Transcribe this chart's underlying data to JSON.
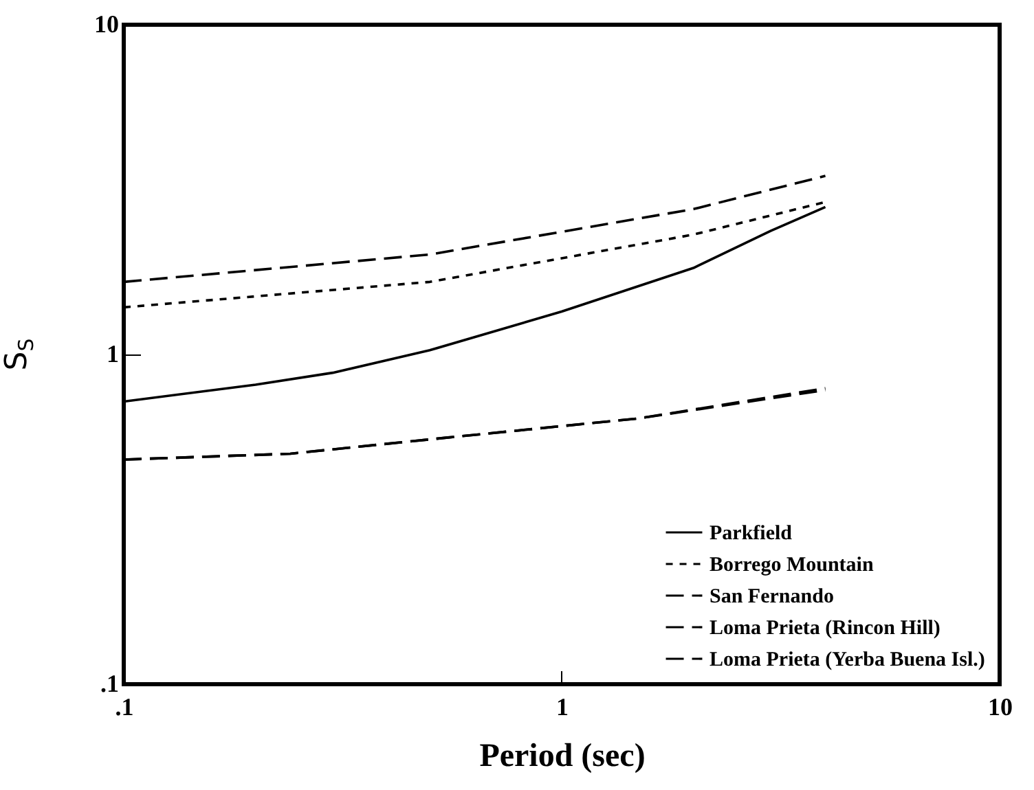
{
  "chart_data": {
    "type": "line",
    "xlabel": "Period (sec)",
    "ylabel": "S$_{S}$",
    "log": "xy",
    "grid": false,
    "legend": "bottom right",
    "xlim": [
      0.1,
      10
    ],
    "xticks": [
      {
        "value": 0.1,
        "label": ".1"
      },
      1,
      10
    ],
    "ylim": [
      0.1,
      10
    ],
    "yticks": [
      {
        "value": 0.1,
        "label": ".1"
      },
      1,
      10
    ],
    "series": [
      {
        "name": "Parkfield",
        "color": "#000000",
        "line_style": "solid",
        "x": [
          0.1,
          0.2,
          0.3,
          0.5,
          1,
          2,
          3,
          4
        ],
        "values": [
          0.72,
          0.81,
          0.88,
          1.03,
          1.35,
          1.83,
          2.37,
          2.8
        ]
      },
      {
        "name": "Borrego Mountain",
        "color": "#000000",
        "line_style": "dotted",
        "x": [
          0.1,
          0.5,
          2,
          4
        ],
        "values": [
          1.39,
          1.66,
          2.31,
          2.9
        ]
      },
      {
        "name": "San Fernando",
        "color": "#000000",
        "line_style": "dashed",
        "x": [
          0.1,
          0.5,
          2,
          4
        ],
        "values": [
          1.66,
          2.01,
          2.76,
          3.48
        ]
      },
      {
        "name": "Loma Prieta (Rincon Hill)",
        "color": "#000000",
        "line_style": "dashed",
        "x": [
          0.1,
          0.24,
          0.55,
          1.5,
          4
        ],
        "values": [
          0.48,
          0.5,
          0.56,
          0.64,
          0.78
        ]
      },
      {
        "name": "Loma Prieta (Yerba Buena Isl.)",
        "color": "#000000",
        "line_style": "dashed",
        "x": [
          0.1,
          0.24,
          0.55,
          1.5,
          4
        ],
        "values": [
          0.48,
          0.5,
          0.56,
          0.64,
          0.79
        ]
      }
    ]
  }
}
